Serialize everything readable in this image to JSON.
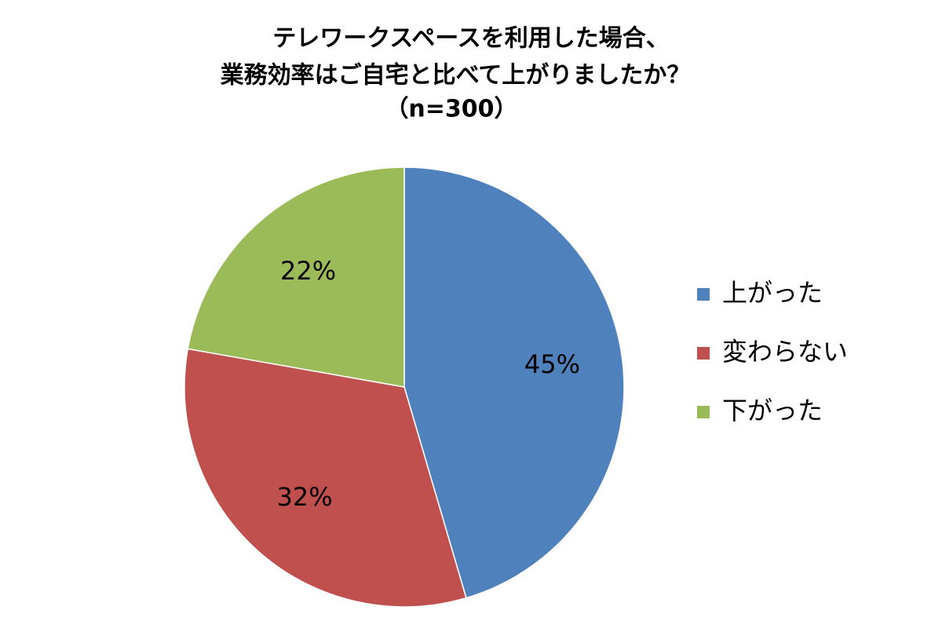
{
  "chart_data": {
    "type": "pie",
    "title": [
      "テレワークスペースを利用した場合、",
      "業務効率はご自宅と比べて上がりましたか？",
      "（n=300）"
    ],
    "categories": [
      "上がった",
      "変わらない",
      "下がった"
    ],
    "values": [
      45,
      32,
      22
    ],
    "value_labels": [
      "45%",
      "32%",
      "22%"
    ],
    "colors": [
      "#4f81bd",
      "#c0504d",
      "#9bbb59"
    ],
    "legend": "right"
  }
}
